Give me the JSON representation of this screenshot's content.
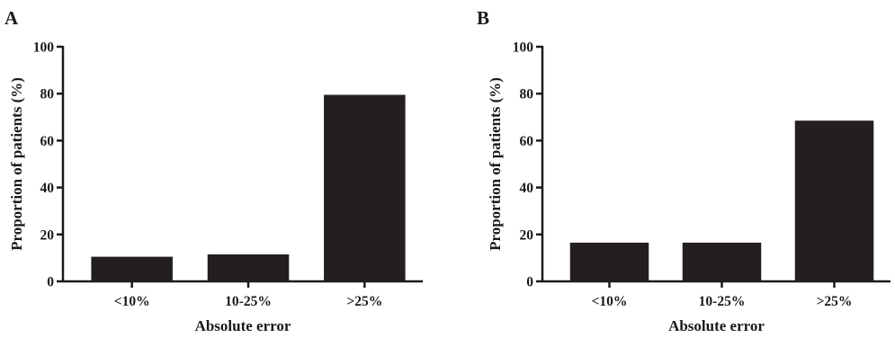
{
  "chart_data": [
    {
      "panel": "A",
      "type": "bar",
      "categories": [
        "<10%",
        "10-25%",
        ">25%"
      ],
      "values": [
        10.5,
        11.5,
        79.5
      ],
      "xlabel": "Absolute error",
      "ylabel": "Proportion of patients (%)",
      "ylim": [
        0,
        100
      ],
      "yticks": [
        "0",
        "20",
        "40",
        "60",
        "80",
        "100"
      ],
      "grid": false,
      "bar_color": "#231f20"
    },
    {
      "panel": "B",
      "type": "bar",
      "categories": [
        "<10%",
        "10-25%",
        ">25%"
      ],
      "values": [
        16.5,
        16.5,
        68.5
      ],
      "xlabel": "Absolute error",
      "ylabel": "Proportion of patients (%)",
      "ylim": [
        0,
        100
      ],
      "yticks": [
        "0",
        "20",
        "40",
        "60",
        "80",
        "100"
      ],
      "grid": false,
      "bar_color": "#231f20"
    }
  ]
}
